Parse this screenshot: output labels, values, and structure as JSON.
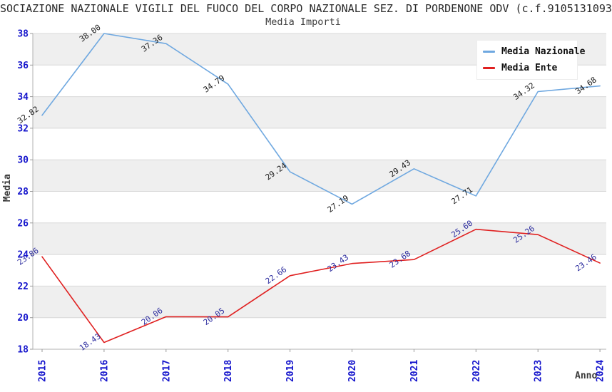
{
  "chart_data": {
    "type": "line",
    "title": "SOCIAZIONE NAZIONALE VIGILI DEL FUOCO DEL CORPO NAZIONALE SEZ. DI PORDENONE ODV (c.f.9105131093",
    "subtitle": "Media Importi",
    "xlabel": "Anno",
    "ylabel": "Media",
    "x": [
      2015,
      2016,
      2017,
      2018,
      2019,
      2020,
      2021,
      2022,
      2023,
      2024
    ],
    "series": [
      {
        "name": "Media Nazionale",
        "color": "#6fa8e0",
        "label_color": "#1a1a1a",
        "values": [
          32.82,
          38.0,
          37.36,
          34.79,
          29.24,
          27.19,
          29.43,
          27.71,
          34.32,
          34.68
        ]
      },
      {
        "name": "Media Ente",
        "color": "#e02020",
        "label_color": "#2b2b9e",
        "values": [
          23.86,
          18.43,
          20.06,
          20.05,
          22.66,
          23.43,
          23.68,
          25.6,
          25.26,
          23.46
        ]
      }
    ],
    "ylim": [
      18,
      38
    ],
    "ytick_step": 2,
    "grid": "horizontal gridlines with alternating gray/white bands, gray topmost",
    "band_color": "#efefef",
    "gridline_color": "#d8d8d8",
    "axis_line_color": "#b0b0b0",
    "tick_label_color": "#1515cc",
    "axis_title_color": "#3a3a3a",
    "point_label_format": "0.00",
    "legend_position": "top-right"
  }
}
